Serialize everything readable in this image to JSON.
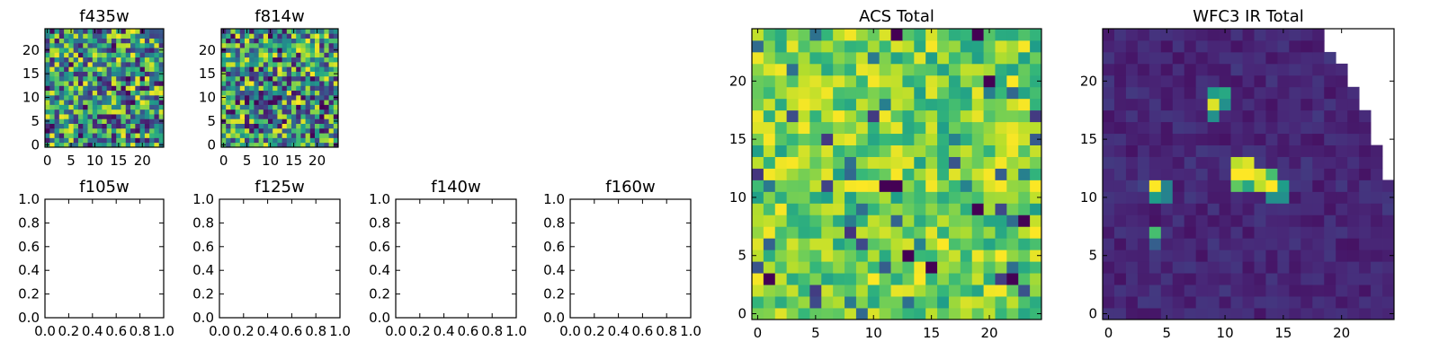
{
  "chart_data": [
    {
      "type": "heatmap",
      "title": "f435w",
      "x_ticks": [
        0,
        5,
        10,
        15,
        20
      ],
      "y_ticks": [
        0,
        5,
        10,
        15,
        20
      ],
      "xlim": [
        -0.5,
        24.5
      ],
      "ylim": [
        -0.5,
        24.5
      ],
      "grid_shape": [
        25,
        25
      ],
      "colormap": "viridis",
      "value_range": [
        0,
        1
      ],
      "grid": false
    },
    {
      "type": "heatmap",
      "title": "f814w",
      "x_ticks": [
        0,
        5,
        10,
        15,
        20
      ],
      "y_ticks": [
        0,
        5,
        10,
        15,
        20
      ],
      "xlim": [
        -0.5,
        24.5
      ],
      "ylim": [
        -0.5,
        24.5
      ],
      "grid_shape": [
        25,
        25
      ],
      "colormap": "viridis",
      "value_range": [
        0,
        1
      ],
      "grid": false
    },
    {
      "type": "heatmap",
      "title": "ACS Total",
      "x_ticks": [
        0,
        5,
        10,
        15,
        20
      ],
      "y_ticks": [
        0,
        5,
        10,
        15,
        20
      ],
      "xlim": [
        -0.5,
        24.5
      ],
      "ylim": [
        -0.5,
        24.5
      ],
      "grid_shape": [
        25,
        25
      ],
      "colormap": "viridis",
      "value_range": [
        0.25,
        1
      ],
      "grid": false
    },
    {
      "type": "heatmap",
      "title": "WFC3 IR Total",
      "x_ticks": [
        0,
        5,
        10,
        15,
        20
      ],
      "y_ticks": [
        0,
        5,
        10,
        15,
        20
      ],
      "xlim": [
        -0.5,
        24.5
      ],
      "ylim": [
        -0.5,
        24.5
      ],
      "grid_shape": [
        25,
        25
      ],
      "colormap": "viridis",
      "value_range": [
        0,
        1
      ],
      "background_value": 0.05,
      "bright_sources": [
        {
          "x": 4,
          "y": 11,
          "value": 1.0
        },
        {
          "x": 4,
          "y": 10,
          "value": 0.55
        },
        {
          "x": 3,
          "y": 11,
          "value": 0.2
        },
        {
          "x": 5,
          "y": 11,
          "value": 0.45
        },
        {
          "x": 5,
          "y": 10,
          "value": 0.45
        },
        {
          "x": 4,
          "y": 7,
          "value": 0.7
        },
        {
          "x": 4,
          "y": 6,
          "value": 0.3
        },
        {
          "x": 9,
          "y": 19,
          "value": 0.55
        },
        {
          "x": 10,
          "y": 19,
          "value": 0.6
        },
        {
          "x": 9,
          "y": 18,
          "value": 0.95
        },
        {
          "x": 10,
          "y": 18,
          "value": 0.5
        },
        {
          "x": 9,
          "y": 17,
          "value": 0.5
        },
        {
          "x": 11,
          "y": 13,
          "value": 0.9
        },
        {
          "x": 12,
          "y": 13,
          "value": 0.95
        },
        {
          "x": 11,
          "y": 12,
          "value": 1.0
        },
        {
          "x": 12,
          "y": 12,
          "value": 1.0
        },
        {
          "x": 13,
          "y": 12,
          "value": 0.95
        },
        {
          "x": 14,
          "y": 12,
          "value": 0.7
        },
        {
          "x": 11,
          "y": 11,
          "value": 0.75
        },
        {
          "x": 12,
          "y": 11,
          "value": 0.6
        },
        {
          "x": 13,
          "y": 11,
          "value": 0.9
        },
        {
          "x": 14,
          "y": 11,
          "value": 1.0
        },
        {
          "x": 15,
          "y": 11,
          "value": 0.55
        },
        {
          "x": 14,
          "y": 10,
          "value": 0.5
        },
        {
          "x": 15,
          "y": 10,
          "value": 0.5
        }
      ],
      "masked_region": "upper-right corner (no data)",
      "grid": false
    },
    {
      "type": "line",
      "title": "f105w",
      "x_ticks": [
        "0.0",
        "0.2",
        "0.4",
        "0.6",
        "0.8",
        "1.0"
      ],
      "y_ticks": [
        "0.0",
        "0.2",
        "0.4",
        "0.6",
        "0.8",
        "1.0"
      ],
      "xlim": [
        0,
        1
      ],
      "ylim": [
        0,
        1
      ],
      "series": [],
      "grid": false
    },
    {
      "type": "line",
      "title": "f125w",
      "x_ticks": [
        "0.0",
        "0.2",
        "0.4",
        "0.6",
        "0.8",
        "1.0"
      ],
      "y_ticks": [
        "0.0",
        "0.2",
        "0.4",
        "0.6",
        "0.8",
        "1.0"
      ],
      "xlim": [
        0,
        1
      ],
      "ylim": [
        0,
        1
      ],
      "series": [],
      "grid": false
    },
    {
      "type": "line",
      "title": "f140w",
      "x_ticks": [
        "0.0",
        "0.2",
        "0.4",
        "0.6",
        "0.8",
        "1.0"
      ],
      "y_ticks": [
        "0.0",
        "0.2",
        "0.4",
        "0.6",
        "0.8",
        "1.0"
      ],
      "xlim": [
        0,
        1
      ],
      "ylim": [
        0,
        1
      ],
      "series": [],
      "grid": false
    },
    {
      "type": "line",
      "title": "f160w",
      "x_ticks": [
        "0.0",
        "0.2",
        "0.4",
        "0.6",
        "0.8",
        "1.0"
      ],
      "y_ticks": [
        "0.0",
        "0.2",
        "0.4",
        "0.6",
        "0.8",
        "1.0"
      ],
      "xlim": [
        0,
        1
      ],
      "ylim": [
        0,
        1
      ],
      "series": [],
      "grid": false
    }
  ],
  "colors": {
    "frame": "#000000",
    "background": "#ffffff"
  }
}
